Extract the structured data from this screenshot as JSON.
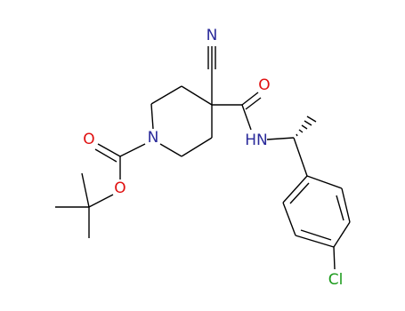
{
  "atoms": [
    {
      "label": "N"
    },
    {
      "label": "O"
    },
    {
      "label": "HN"
    },
    {
      "label": "N"
    },
    {
      "label": "O"
    },
    {
      "label": "O"
    },
    {
      "label": "Cl"
    }
  ]
}
